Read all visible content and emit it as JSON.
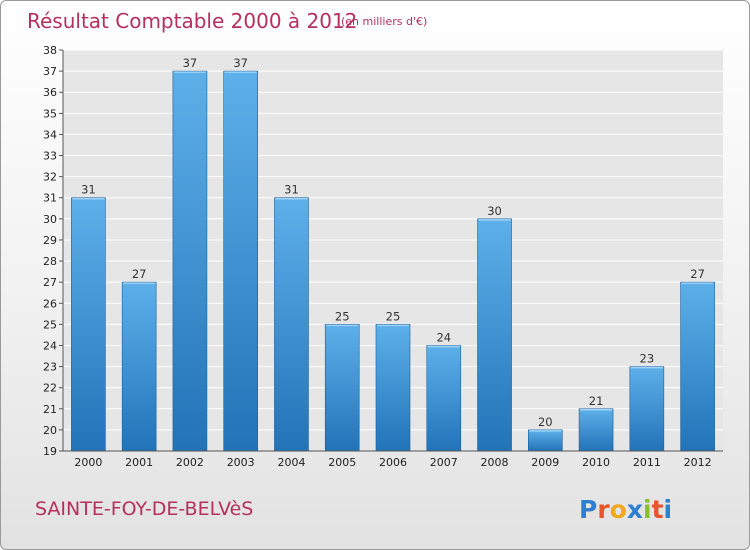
{
  "chart_data": {
    "type": "bar",
    "title": "Résultat Comptable 2000 à 2012",
    "subtitle": "(en milliers d'€)",
    "categories": [
      "2000",
      "2001",
      "2002",
      "2003",
      "2004",
      "2005",
      "2006",
      "2007",
      "2008",
      "2009",
      "2010",
      "2011",
      "2012"
    ],
    "values": [
      31,
      27,
      37,
      37,
      31,
      25,
      25,
      24,
      30,
      20,
      21,
      23,
      27
    ],
    "xlabel": "",
    "ylabel": "",
    "ylim": [
      19,
      38
    ],
    "yticks": [
      19,
      20,
      21,
      22,
      23,
      24,
      25,
      26,
      27,
      28,
      29,
      30,
      31,
      32,
      33,
      34,
      35,
      36,
      37,
      38
    ],
    "grid": true,
    "bar_color_top": "#5eb0ea",
    "bar_color_bottom": "#2273b8"
  },
  "commune": "SAINTE-FOY-DE-BELVèS",
  "logo": {
    "text": "Proxiti",
    "letter_colors": [
      "#2f7fd0",
      "#e8542c",
      "#f0a81c",
      "#2f7fd0",
      "#8cbf2e",
      "#e8542c",
      "#2f7fd0"
    ]
  },
  "colors": {
    "accent": "#b5305c",
    "grid": "#ffffff",
    "plot_bg": "#e6e6e6"
  }
}
